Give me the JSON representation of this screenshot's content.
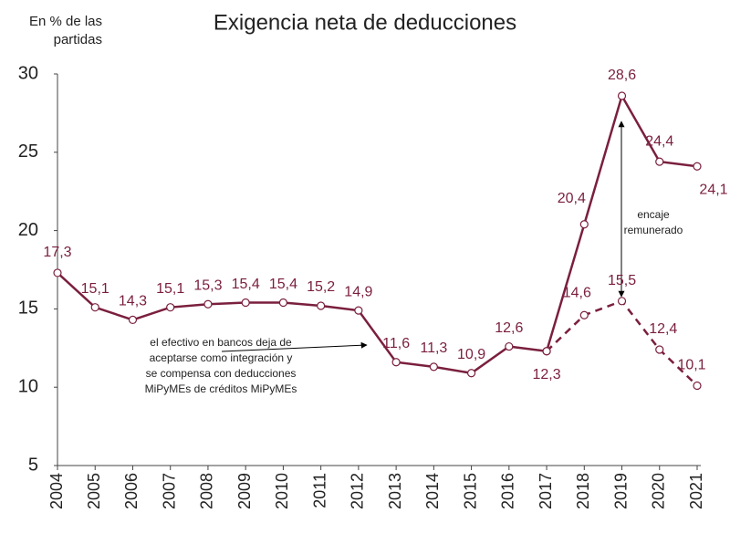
{
  "chart_data": {
    "type": "line",
    "title": "Exigencia neta de deducciones",
    "y_label": "En % de las partidas",
    "categories": [
      "2004",
      "2005",
      "2006",
      "2007",
      "2008",
      "2009",
      "2010",
      "2011",
      "2012",
      "2013",
      "2014",
      "2015",
      "2016",
      "2017",
      "2018",
      "2019",
      "2020",
      "2021"
    ],
    "series": [
      {
        "name": "solid",
        "color": "#7a1f3d",
        "dashed": false,
        "values": [
          17.3,
          15.1,
          14.3,
          15.1,
          15.3,
          15.4,
          15.4,
          15.2,
          14.9,
          11.6,
          11.3,
          10.9,
          12.6,
          12.3,
          20.4,
          28.6,
          24.4,
          24.1
        ],
        "value_labels": [
          "17,3",
          "15,1",
          "14,3",
          "15,1",
          "15,3",
          "15,4",
          "15,4",
          "15,2",
          "14,9",
          "11,6",
          "11,3",
          "10,9",
          "12,6",
          "12,3",
          "20,4",
          "28,6",
          "24,4",
          "24,1"
        ]
      },
      {
        "name": "dashed",
        "color": "#7a1f3d",
        "dashed": true,
        "values": [
          null,
          null,
          null,
          null,
          null,
          null,
          null,
          null,
          null,
          null,
          null,
          null,
          null,
          12.3,
          14.6,
          15.5,
          12.4,
          10.1
        ],
        "value_labels": [
          null,
          null,
          null,
          null,
          null,
          null,
          null,
          null,
          null,
          null,
          null,
          null,
          null,
          null,
          "14,6",
          "15,5",
          "12,4",
          "10,1"
        ]
      }
    ],
    "ylim": [
      5,
      30
    ],
    "yticks": [
      5,
      10,
      15,
      20,
      25,
      30
    ],
    "annotations": [
      {
        "lines": [
          "el efectivo en bancos deja de",
          "aceptarse como integración y",
          "se compensa con deducciones",
          "MiPyMEs de créditos MiPyMEs"
        ]
      },
      {
        "lines": [
          "encaje",
          "remunerado"
        ]
      }
    ]
  }
}
